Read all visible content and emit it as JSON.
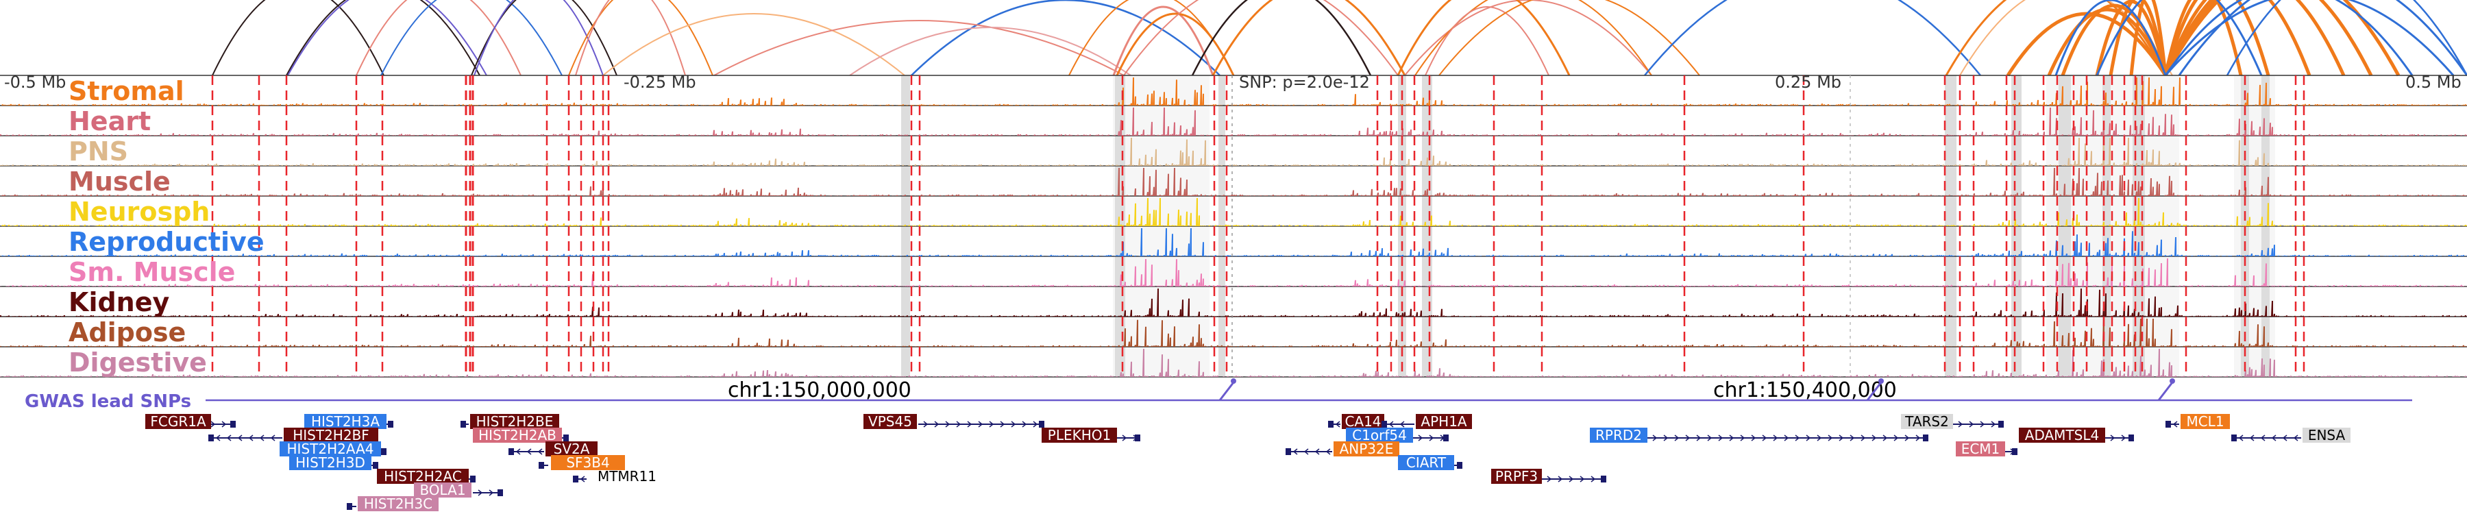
{
  "axis": {
    "ticks": [
      {
        "label": "-0.5 Mb",
        "pos": "left"
      },
      {
        "label": "-0.25 Mb",
        "pos": "q1"
      },
      {
        "label": "0.25 Mb",
        "pos": "q3"
      },
      {
        "label": "0.5 Mb",
        "pos": "right"
      }
    ],
    "snp_label": "SNP: p=2.0e-12"
  },
  "tracks": [
    {
      "name": "Stromal",
      "color": "#f07a1a"
    },
    {
      "name": "Heart",
      "color": "#d56a7b"
    },
    {
      "name": "PNS",
      "color": "#ddb98c"
    },
    {
      "name": "Muscle",
      "color": "#c0605a"
    },
    {
      "name": "Neurosph",
      "color": "#f5d21a"
    },
    {
      "name": "Reproductive",
      "color": "#2f7be8"
    },
    {
      "name": "Sm. Muscle",
      "color": "#ee7fb7"
    },
    {
      "name": "Kidney",
      "color": "#5e0b0b"
    },
    {
      "name": "Adipose",
      "color": "#a9512b"
    },
    {
      "name": "Digestive",
      "color": "#c983a6"
    }
  ],
  "coords": [
    "chr1:150,000,000",
    "chr1:150,400,000"
  ],
  "gwas_label": "GWAS lead SNPs",
  "genes": [
    {
      "name": "FCGR1A",
      "bg": "#6b0b0b",
      "fg": "#ffffff"
    },
    {
      "name": "HIST2H3A",
      "bg": "#2f7be8",
      "fg": "#ffffff"
    },
    {
      "name": "HIST2H2BF",
      "bg": "#6b0b0b",
      "fg": "#ffffff"
    },
    {
      "name": "HIST2H2AA4",
      "bg": "#2f7be8",
      "fg": "#ffffff"
    },
    {
      "name": "HIST2H3D",
      "bg": "#2f7be8",
      "fg": "#ffffff"
    },
    {
      "name": "HIST2H2AC",
      "bg": "#6b0b0b",
      "fg": "#ffffff"
    },
    {
      "name": "BOLA1",
      "bg": "#c983a6",
      "fg": "#ffffff"
    },
    {
      "name": "HIST2H3C",
      "bg": "#c983a6",
      "fg": "#ffffff"
    },
    {
      "name": "HIST2H2BE",
      "bg": "#6b0b0b",
      "fg": "#ffffff"
    },
    {
      "name": "HIST2H2AB",
      "bg": "#d56a7b",
      "fg": "#ffffff"
    },
    {
      "name": "SV2A",
      "bg": "#6b0b0b",
      "fg": "#ffffff"
    },
    {
      "name": "SF3B4",
      "bg": "#f07a1a",
      "fg": "#ffffff"
    },
    {
      "name": "MTMR11",
      "bg": "none",
      "fg": "#000000"
    },
    {
      "name": "VPS45",
      "bg": "#6b0b0b",
      "fg": "#ffffff"
    },
    {
      "name": "PLEKHO1",
      "bg": "#6b0b0b",
      "fg": "#ffffff"
    },
    {
      "name": "CA14",
      "bg": "#6b0b0b",
      "fg": "#ffffff"
    },
    {
      "name": "APH1A",
      "bg": "#6b0b0b",
      "fg": "#ffffff"
    },
    {
      "name": "C1orf54",
      "bg": "#2f7be8",
      "fg": "#ffffff"
    },
    {
      "name": "ANP32E",
      "bg": "#f07a1a",
      "fg": "#ffffff"
    },
    {
      "name": "CIART",
      "bg": "#2f7be8",
      "fg": "#ffffff"
    },
    {
      "name": "PRPF3",
      "bg": "#6b0b0b",
      "fg": "#ffffff"
    },
    {
      "name": "RPRD2",
      "bg": "#2f7be8",
      "fg": "#ffffff"
    },
    {
      "name": "TARS2",
      "bg": "#d9d9d9",
      "fg": "#000000"
    },
    {
      "name": "ECM1",
      "bg": "#d56a7b",
      "fg": "#ffffff"
    },
    {
      "name": "ADAMTSL4",
      "bg": "#6b0b0b",
      "fg": "#ffffff"
    },
    {
      "name": "MCL1",
      "bg": "#f07a1a",
      "fg": "#ffffff"
    },
    {
      "name": "ENSA",
      "bg": "#d9d9d9",
      "fg": "#000000"
    }
  ],
  "colors": {
    "loop_orange": "#f07a1a",
    "loop_blue": "#2f6fd6",
    "loop_salmon": "#e8857a",
    "loop_dark": "#2a1a1a",
    "ld_red": "#e8252b",
    "highlight": "#dddddd",
    "gwas": "#6a5acd"
  }
}
